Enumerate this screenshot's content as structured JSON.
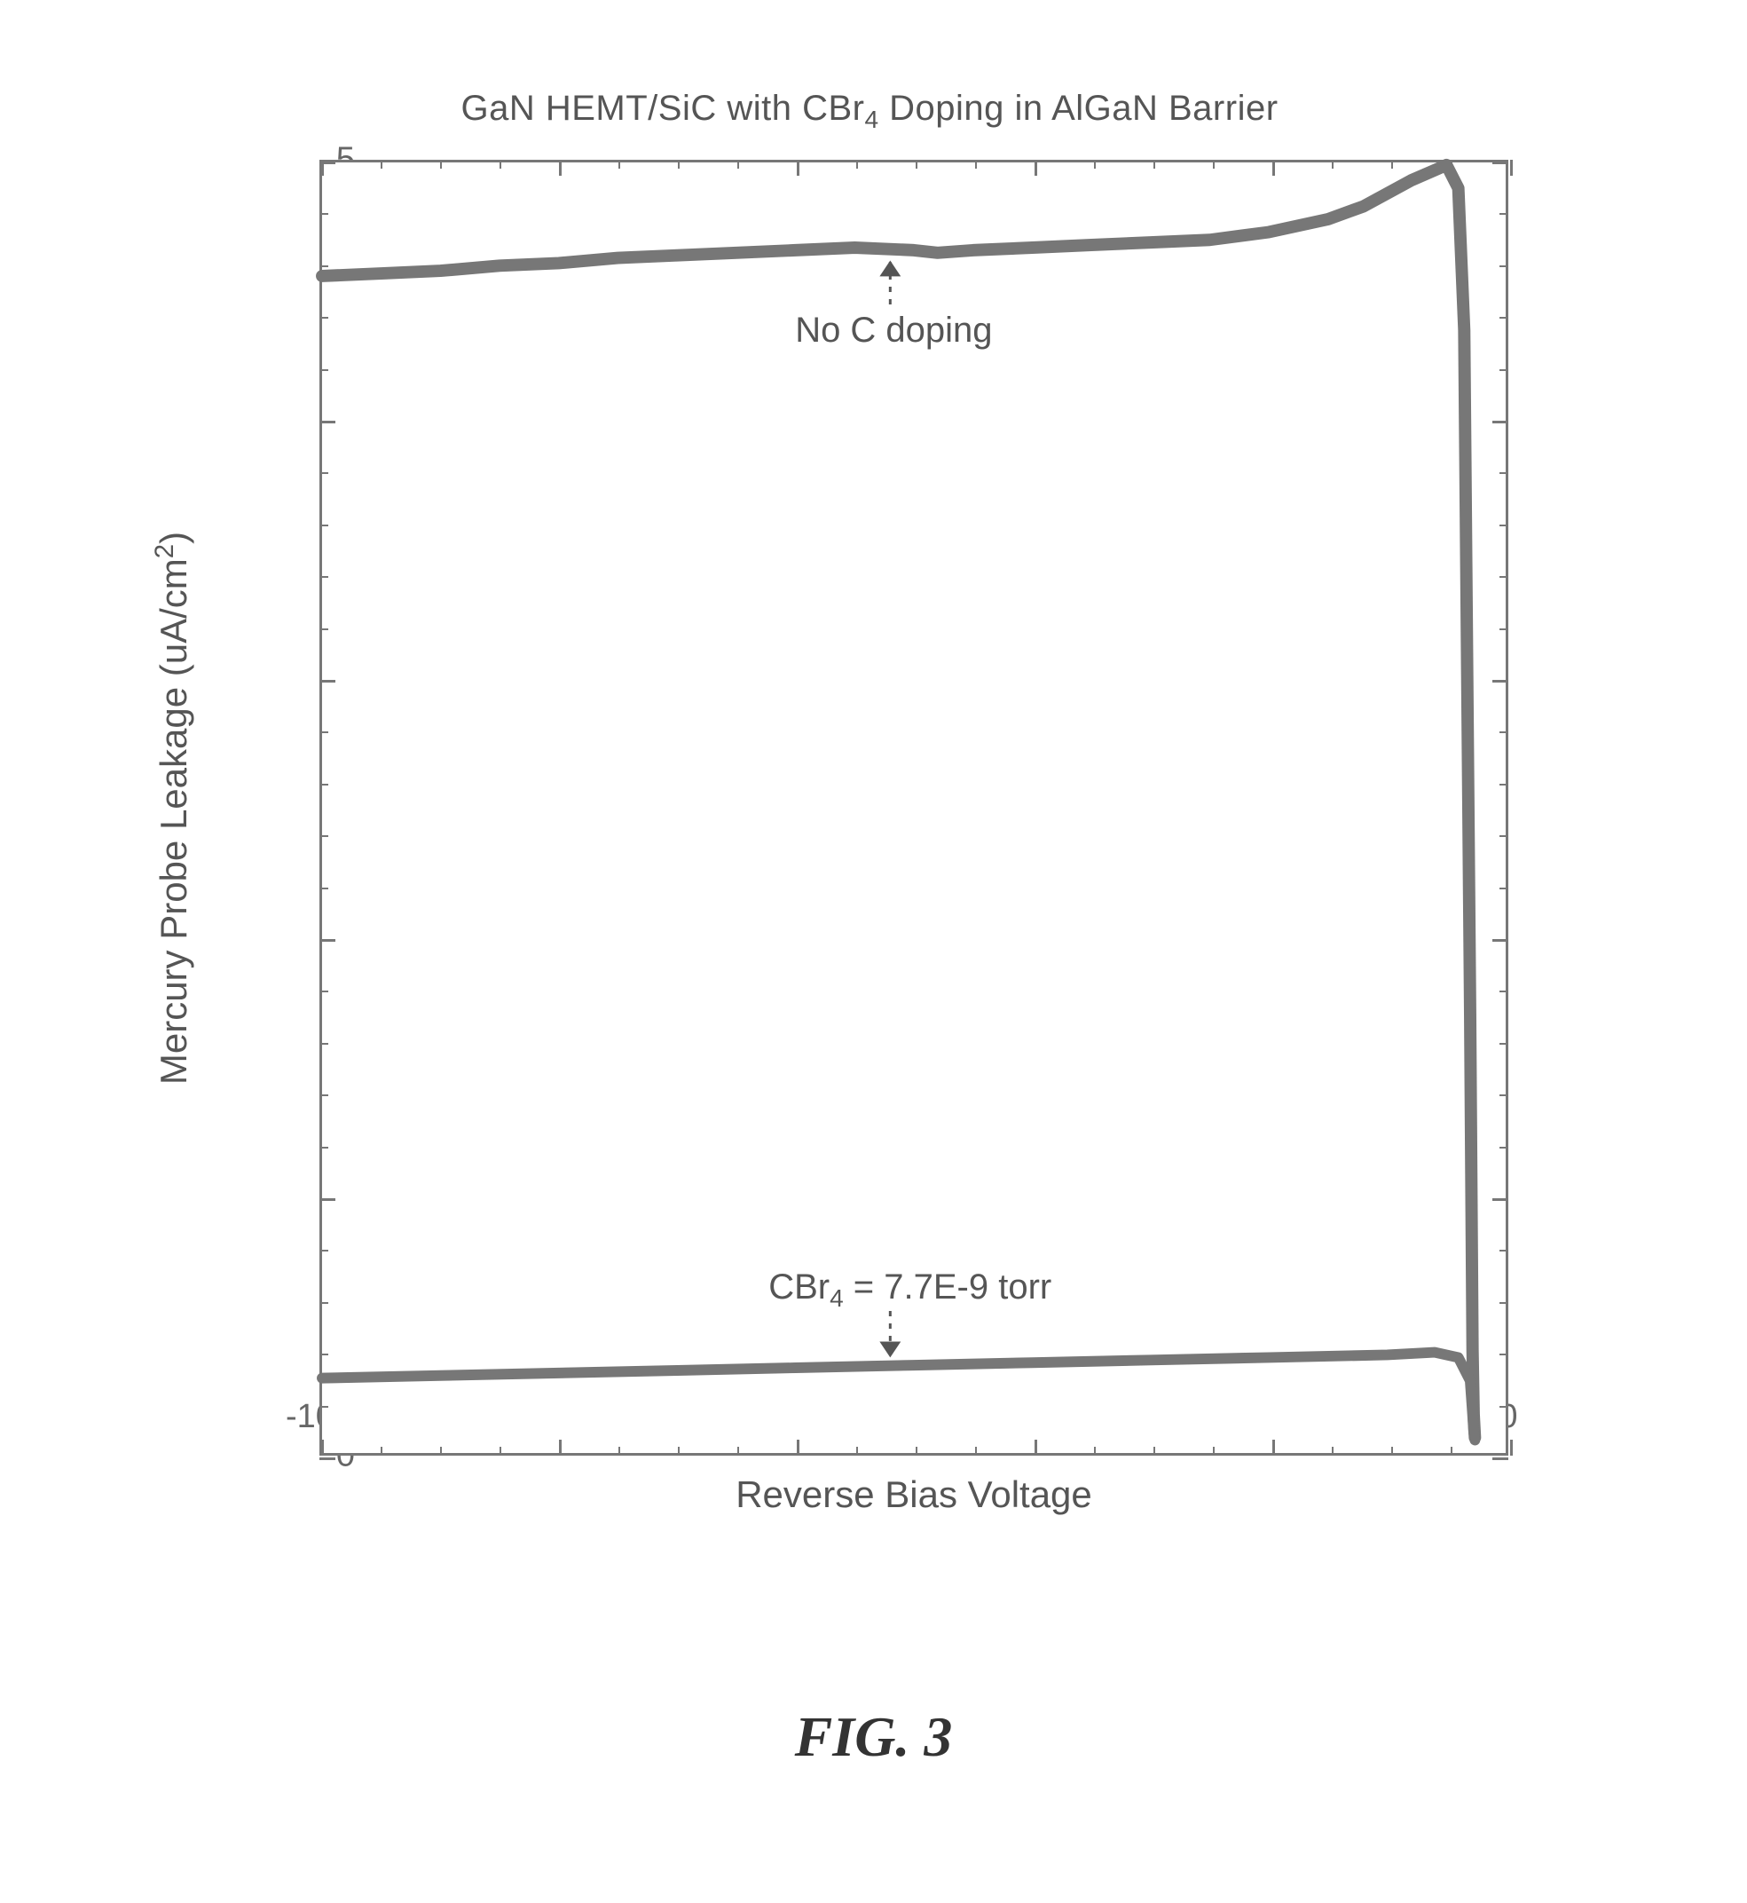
{
  "chart": {
    "type": "line",
    "title_parts": [
      "GaN HEMT/SiC with CBr",
      "4",
      " Doping in AlGaN Barrier"
    ],
    "xlabel": "Reverse Bias Voltage",
    "ylabel_parts": [
      "Mercury Probe Leakage (uA/cm",
      "2",
      ")"
    ],
    "xlim": [
      -100,
      0
    ],
    "ylim": [
      0,
      5
    ],
    "x_major_ticks": [
      -100,
      -80,
      -60,
      -40,
      -20,
      0
    ],
    "x_minor_step": 5,
    "y_major_ticks": [
      0,
      1,
      2,
      3,
      4,
      5
    ],
    "y_minor_step": 0.2,
    "axis_color": "#777777",
    "tick_label_fontsize": 38,
    "label_fontsize": 42,
    "title_fontsize": 40,
    "background_color": "#ffffff",
    "line_color": "#777777",
    "line_width_upper": 14,
    "line_width_lower": 12,
    "series": {
      "no_c_doping": {
        "label": "No C doping",
        "x": [
          -100,
          -95,
          -90,
          -85,
          -80,
          -75,
          -70,
          -65,
          -60,
          -55,
          -50,
          -48,
          -45,
          -40,
          -35,
          -30,
          -25,
          -20,
          -15,
          -12,
          -10,
          -8,
          -6,
          -5,
          -4,
          -3.5,
          -3,
          -2.8,
          -2.7,
          -2.6
        ],
        "y": [
          4.56,
          4.57,
          4.58,
          4.6,
          4.61,
          4.63,
          4.64,
          4.65,
          4.66,
          4.67,
          4.66,
          4.65,
          4.66,
          4.67,
          4.68,
          4.69,
          4.7,
          4.73,
          4.78,
          4.83,
          4.88,
          4.93,
          4.97,
          4.99,
          4.9,
          4.35,
          1.7,
          0.4,
          0.15,
          0.06
        ]
      },
      "cbr4": {
        "label_parts": [
          "CBr",
          "4",
          " = 7.7E-9 torr"
        ],
        "x": [
          -100,
          -90,
          -80,
          -70,
          -60,
          -50,
          -40,
          -30,
          -20,
          -10,
          -6,
          -4,
          -3,
          -2.8,
          -2.7,
          -2.6
        ],
        "y": [
          0.29,
          0.3,
          0.31,
          0.32,
          0.33,
          0.34,
          0.35,
          0.36,
          0.37,
          0.38,
          0.39,
          0.37,
          0.28,
          0.15,
          0.08,
          0.05
        ]
      }
    },
    "annotation_upper": {
      "text": "No C doping",
      "arrow_from_xy": [
        -52,
        4.45
      ],
      "arrow_to_xy": [
        -52,
        4.62
      ]
    },
    "annotation_lower": {
      "arrow_from_xy": [
        -52,
        0.55
      ],
      "arrow_to_xy": [
        -52,
        0.37
      ]
    }
  },
  "figure_caption": "FIG. 3"
}
